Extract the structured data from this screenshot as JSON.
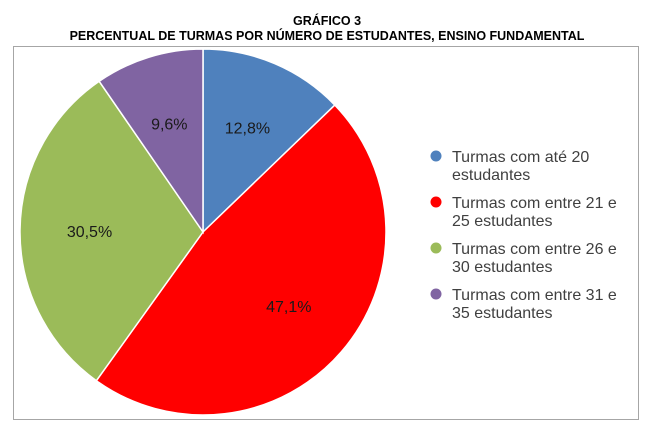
{
  "heading": {
    "number": "GRÁFICO 3",
    "subtitle": "PERCENTUAL DE TURMAS POR NÚMERO DE ESTUDANTES, ENSINO FUNDAMENTAL"
  },
  "chart_data": {
    "type": "pie",
    "title": "GRÁFICO 3",
    "subtitle": "PERCENTUAL DE TURMAS POR NÚMERO DE ESTUDANTES, ENSINO FUNDAMENTAL",
    "legend_position": "right",
    "start_angle": "12 o'clock, clockwise",
    "slices": [
      {
        "label": "Turmas com até 20 estudantes",
        "value": 12.8,
        "value_label": "12,8%",
        "color": "#4f81bd",
        "legend_lines": [
          "Turmas com até 20",
          "estudantes"
        ]
      },
      {
        "label": "Turmas com entre 21 e 25 estudantes",
        "value": 47.1,
        "value_label": "47,1%",
        "color": "#ff0000",
        "legend_lines": [
          "Turmas com entre 21 e",
          "25 estudantes"
        ]
      },
      {
        "label": "Turmas com entre 26 e 30 estudantes",
        "value": 30.5,
        "value_label": "30,5%",
        "color": "#9bbb59",
        "legend_lines": [
          "Turmas com entre 26 e",
          "30 estudantes"
        ]
      },
      {
        "label": "Turmas com entre 31 e 35 estudantes",
        "value": 9.6,
        "value_label": "9,6%",
        "color": "#8064a2",
        "legend_lines": [
          "Turmas com entre 31 e",
          "35 estudantes"
        ]
      }
    ]
  }
}
